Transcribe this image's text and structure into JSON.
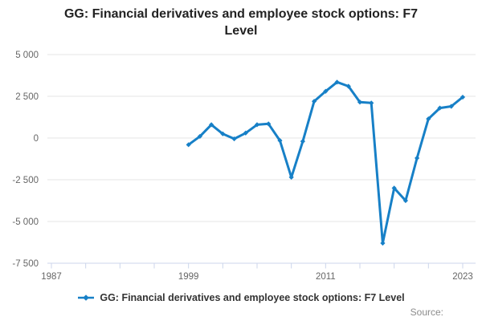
{
  "title": {
    "text": "GG: Financial derivatives and employee stock options: F7 Level"
  },
  "legend": {
    "label": "GG: Financial derivatives and employee stock options: F7 Level"
  },
  "footer": {
    "source_label": "Source:"
  },
  "colors": {
    "line": "#1780c7",
    "grid": "#e6e6e6",
    "axis": "#ccd6eb",
    "tick_label": "#666666",
    "title_text": "#222222",
    "legend_text": "#333333",
    "source_text": "#8c8c8c",
    "background": "#ffffff"
  },
  "chart_data": {
    "type": "line",
    "title": "GG: Financial derivatives and employee stock options: F7 Level",
    "xlabel": "",
    "ylabel": "",
    "xlim": [
      1987,
      2023
    ],
    "ylim": [
      -7500,
      5000
    ],
    "grid": true,
    "legend_position": "bottom-center",
    "y_ticks": [
      {
        "label": "5 000",
        "value": 5000
      },
      {
        "label": "2 500",
        "value": 2500
      },
      {
        "label": "0",
        "value": 0
      },
      {
        "label": "-2 500",
        "value": -2500
      },
      {
        "label": "-5 000",
        "value": -5000
      },
      {
        "label": "-7 500",
        "value": -7500
      }
    ],
    "x_minor_ticks": [
      1987,
      1990,
      1993,
      1996,
      1999,
      2002,
      2005,
      2008,
      2011,
      2014,
      2017,
      2020,
      2023
    ],
    "x_labeled_ticks": [
      1987,
      1999,
      2011,
      2023
    ],
    "series": [
      {
        "name": "GG: Financial derivatives and employee stock options: F7 Level",
        "x": [
          1999,
          2000,
          2001,
          2002,
          2003,
          2004,
          2005,
          2006,
          2007,
          2008,
          2009,
          2010,
          2011,
          2012,
          2013,
          2014,
          2015,
          2016,
          2017,
          2018,
          2019,
          2020,
          2021,
          2022,
          2023
        ],
        "values": [
          -400,
          100,
          800,
          250,
          -50,
          300,
          800,
          850,
          -150,
          -2350,
          -200,
          2200,
          2800,
          3350,
          3100,
          2150,
          2100,
          -6300,
          -3000,
          -3750,
          -1200,
          1150,
          1800,
          1900,
          2450
        ]
      }
    ]
  }
}
